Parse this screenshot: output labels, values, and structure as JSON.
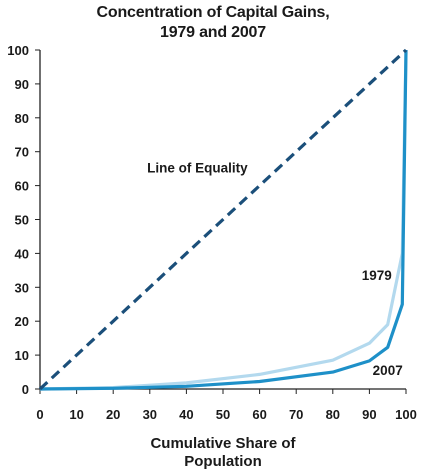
{
  "chart_data": {
    "type": "line",
    "title": [
      "Concentration of Capital Gains,",
      "1979 and 2007"
    ],
    "xlabel": [
      "Cumulative Share of",
      "Population"
    ],
    "ylabel": "",
    "xlim": [
      0,
      100
    ],
    "ylim": [
      0,
      100
    ],
    "xticks": [
      0,
      10,
      20,
      30,
      40,
      50,
      60,
      70,
      80,
      90,
      100
    ],
    "yticks": [
      0,
      10,
      20,
      30,
      40,
      50,
      60,
      70,
      80,
      90,
      100
    ],
    "grid": false,
    "series": [
      {
        "name": "Line of Equality",
        "color": "#1b4f7a",
        "style": "dashed",
        "x": [
          0,
          100
        ],
        "y": [
          0,
          100
        ]
      },
      {
        "name": "1979",
        "color": "#b3d9ee",
        "style": "solid",
        "x": [
          0,
          20,
          40,
          60,
          80,
          90,
          95,
          99,
          100
        ],
        "y": [
          0,
          0.4,
          1.8,
          4.3,
          8.5,
          13.5,
          19,
          40,
          100
        ]
      },
      {
        "name": "2007",
        "color": "#1e90c8",
        "style": "solid",
        "x": [
          0,
          20,
          40,
          60,
          80,
          90,
          95,
          99,
          100
        ],
        "y": [
          0,
          0.2,
          0.8,
          2.2,
          5,
          8.3,
          12.3,
          25,
          100
        ]
      }
    ],
    "annotations": [
      {
        "text": "Line of Equality",
        "x": 43,
        "y": 63.8
      },
      {
        "text": "1979",
        "x": 92,
        "y": 32.2
      },
      {
        "text": "2007",
        "x": 95,
        "y": 4.1
      }
    ]
  }
}
